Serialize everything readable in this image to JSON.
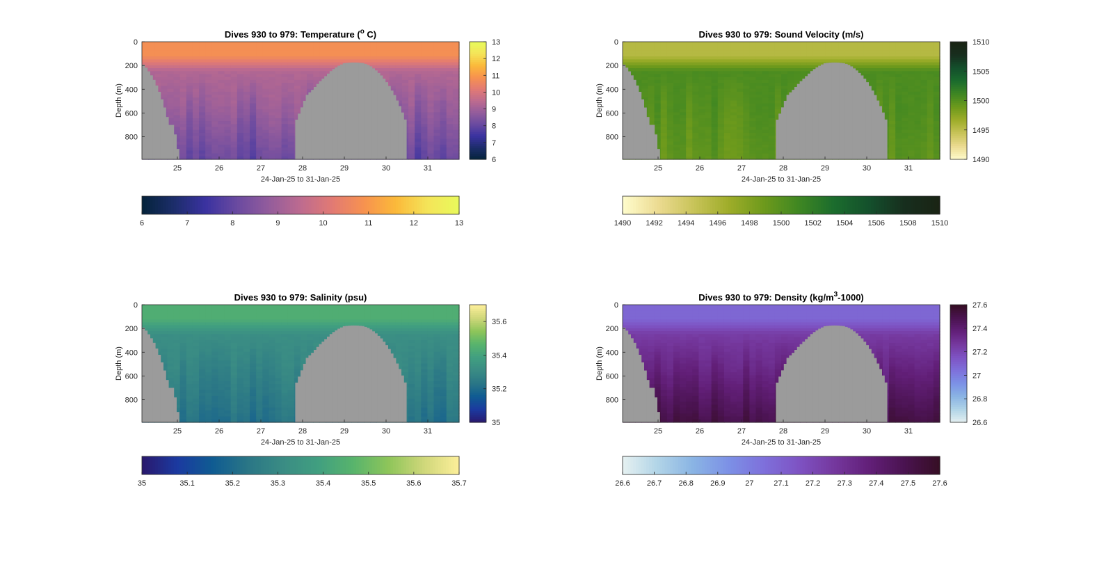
{
  "figure": {
    "background": "#ffffff",
    "land_color": "#9b9b9b",
    "axis_color": "#262626"
  },
  "chart_data": [
    {
      "type": "heatmap",
      "title": "Dives 930 to 979: Temperature (",
      "title_sup": "o",
      "title_tail": " C)",
      "xlabel": "24-Jan-25 to 31-Jan-25",
      "ylabel": "Depth (m)",
      "x_range": [
        24.15,
        31.75
      ],
      "y_range": [
        0,
        990
      ],
      "xticks": [
        25,
        26,
        27,
        28,
        29,
        30,
        31
      ],
      "yticks": [
        0,
        200,
        400,
        600,
        800
      ],
      "colormap": "thermal",
      "clim": [
        6,
        13
      ],
      "right_colorbar_ticks": [
        6,
        7,
        8,
        9,
        10,
        11,
        12,
        13
      ],
      "bottom_colorbar_ticks": [
        "6",
        "7",
        "8",
        "9",
        "10",
        "11",
        "12",
        "13"
      ],
      "profile": {
        "surface": 10.8,
        "mid": 9.3,
        "deep": 8.0,
        "variability": 0.35
      }
    },
    {
      "type": "heatmap",
      "title": "Dives 930 to 979: Sound Velocity (m/s)",
      "title_sup": "",
      "title_tail": "",
      "xlabel": "24-Jan-25 to 31-Jan-25",
      "ylabel": "Depth (m)",
      "x_range": [
        24.15,
        31.75
      ],
      "y_range": [
        0,
        990
      ],
      "xticks": [
        25,
        26,
        27,
        28,
        29,
        30,
        31
      ],
      "yticks": [
        0,
        200,
        400,
        600,
        800
      ],
      "colormap": "speed",
      "clim": [
        1490,
        1510
      ],
      "right_colorbar_ticks": [
        1490,
        1495,
        1500,
        1505,
        1510
      ],
      "bottom_colorbar_ticks": [
        "1490",
        "1492",
        "1494",
        "1496",
        "1498",
        "1500",
        "1502",
        "1504",
        "1506",
        "1508",
        "1510"
      ],
      "profile": {
        "surface": 1495.5,
        "mid": 1500.5,
        "deep": 1499.5,
        "variability": 0.8
      }
    },
    {
      "type": "heatmap",
      "title": "Dives 930 to 979: Salinity (psu)",
      "title_sup": "",
      "title_tail": "",
      "xlabel": "24-Jan-25 to 31-Jan-25",
      "ylabel": "Depth (m)",
      "x_range": [
        24.15,
        31.75
      ],
      "y_range": [
        0,
        990
      ],
      "xticks": [
        25,
        26,
        27,
        28,
        29,
        30,
        31
      ],
      "yticks": [
        0,
        200,
        400,
        600,
        800
      ],
      "colormap": "haline",
      "clim": [
        35,
        35.7
      ],
      "right_colorbar_ticks": [
        35,
        35.2,
        35.4,
        35.6
      ],
      "bottom_colorbar_ticks": [
        "35",
        "35.1",
        "35.2",
        "35.3",
        "35.4",
        "35.5",
        "35.6",
        "35.7"
      ],
      "profile": {
        "surface": 35.44,
        "mid": 35.32,
        "deep": 35.22,
        "variability": 0.03
      }
    },
    {
      "type": "heatmap",
      "title": "Dives 930 to 979: Density (kg/m",
      "title_sup": "3",
      "title_tail": "-1000)",
      "xlabel": "24-Jan-25 to 31-Jan-25",
      "ylabel": "Depth (m)",
      "x_range": [
        24.15,
        31.75
      ],
      "y_range": [
        0,
        990
      ],
      "xticks": [
        25,
        26,
        27,
        28,
        29,
        30,
        31
      ],
      "yticks": [
        0,
        200,
        400,
        600,
        800
      ],
      "colormap": "dense",
      "clim": [
        26.6,
        27.6
      ],
      "right_colorbar_ticks": [
        26.6,
        26.8,
        27,
        27.2,
        27.4,
        27.6
      ],
      "bottom_colorbar_ticks": [
        "26.6",
        "26.7",
        "26.8",
        "26.9",
        "27",
        "27.1",
        "27.2",
        "27.3",
        "27.4",
        "27.5",
        "27.6"
      ],
      "profile": {
        "surface": 27.08,
        "mid": 27.25,
        "deep": 27.52,
        "variability": 0.04
      }
    }
  ],
  "bathymetry": {
    "note_days": [
      24.15,
      24.25,
      24.35,
      24.45,
      24.55,
      24.65,
      24.72,
      24.8,
      24.9,
      25.05
    ],
    "left_floor": [
      180,
      220,
      270,
      330,
      410,
      510,
      590,
      700,
      700,
      990
    ],
    "seamount_days": [
      27.8,
      27.95,
      28.1,
      28.25,
      28.4,
      28.55,
      28.7,
      28.85,
      29.0,
      29.15,
      29.3,
      29.45,
      29.6,
      29.75,
      29.9,
      30.05,
      30.2,
      30.35,
      30.5
    ],
    "seamount_top": [
      700,
      580,
      450,
      400,
      340,
      290,
      240,
      205,
      180,
      175,
      175,
      180,
      200,
      240,
      290,
      360,
      450,
      560,
      700
    ]
  }
}
